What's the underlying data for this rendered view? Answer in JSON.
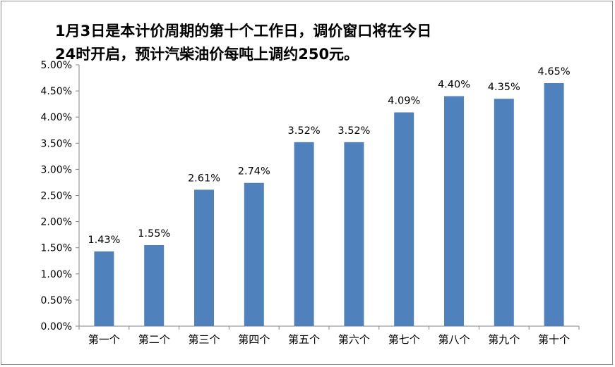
{
  "chart_data": {
    "type": "bar",
    "title": "1月3日是本计价周期的第十个工作日，调价窗口将在今日24时开启，预计汽柴油价每吨上调约250元。",
    "title_lines": [
      "1月3日是本计价周期的第十个工作日，调价窗口将在今日",
      "24时开启，预计汽柴油价每吨上调约250元。"
    ],
    "categories": [
      "第一个",
      "第二个",
      "第三个",
      "第四个",
      "第五个",
      "第六个",
      "第七个",
      "第八个",
      "第九个",
      "第十个"
    ],
    "values": [
      1.43,
      1.55,
      2.61,
      2.74,
      3.52,
      3.52,
      4.09,
      4.4,
      4.35,
      4.65
    ],
    "data_labels": [
      "1.43%",
      "1.55%",
      "2.61%",
      "2.74%",
      "3.52%",
      "3.52%",
      "4.09%",
      "4.40%",
      "4.35%",
      "4.65%"
    ],
    "y_ticks": [
      0,
      0.5,
      1,
      1.5,
      2,
      2.5,
      3,
      3.5,
      4,
      4.5,
      5
    ],
    "y_tick_labels": [
      "0.00%",
      "0.50%",
      "1.00%",
      "1.50%",
      "2.00%",
      "2.50%",
      "3.00%",
      "3.50%",
      "4.00%",
      "4.50%",
      "5.00%"
    ],
    "ylim": [
      0,
      5
    ],
    "xlabel": "",
    "ylabel": "",
    "grid": false,
    "legend": "none",
    "bar_color": "#4f81bd"
  }
}
